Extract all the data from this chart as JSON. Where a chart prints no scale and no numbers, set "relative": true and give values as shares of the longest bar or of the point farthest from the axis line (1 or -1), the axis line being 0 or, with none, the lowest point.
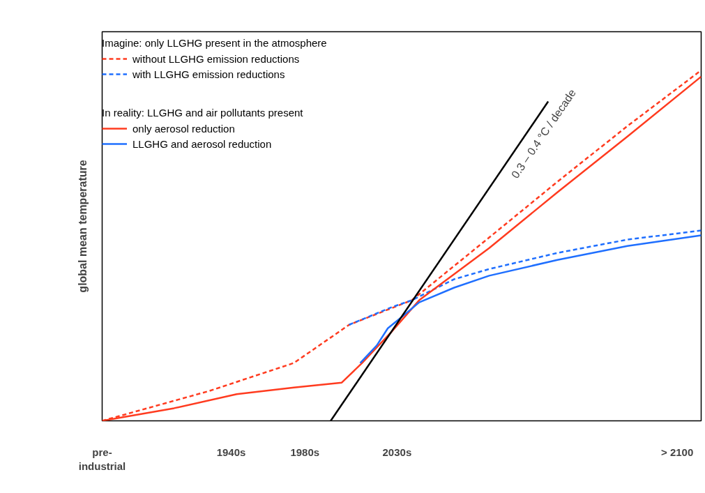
{
  "chart_data": {
    "type": "line",
    "relative": true,
    "ylabel": "global mean temperature",
    "xlim": [
      1870,
      2195
    ],
    "xticks": [
      {
        "value": 1870,
        "label": "pre-\nindustrial"
      },
      {
        "value": 1940,
        "label": "1940s"
      },
      {
        "value": 1980,
        "label": "1980s"
      },
      {
        "value": 2030,
        "label": "2030s"
      },
      {
        "value": 2182,
        "label": "> 2100"
      }
    ],
    "legend": "top left",
    "grid": false,
    "legend_title": [
      "Imagine: only LLGHG present in the atmosphere",
      "In reality: LLGHG and air pollutants present"
    ],
    "series": [
      {
        "name": "without LLGHG emission reductions",
        "color": "#ff3b1f",
        "line_style": "dashed",
        "x": [
          1870,
          1928,
          1974,
          2004,
          2038,
          2080,
          2117,
          2155,
          2195
        ],
        "values": [
          0,
          0.085,
          0.165,
          0.274,
          0.344,
          0.523,
          0.682,
          0.841,
          1.0
        ]
      },
      {
        "name": "with LLGHG emission reductions",
        "color": "#1f6fff",
        "line_style": "dashed",
        "x": [
          2004,
          2027,
          2038,
          2061,
          2080,
          2117,
          2155,
          2195
        ],
        "values": [
          0.274,
          0.324,
          0.344,
          0.404,
          0.433,
          0.479,
          0.517,
          0.543
        ]
      },
      {
        "name": "only aerosol reduction",
        "color": "#ff3b1f",
        "line_style": "solid",
        "x": [
          1870,
          1909,
          1943,
          1974,
          2000,
          2011,
          2027,
          2042,
          2080,
          2117,
          2155,
          2195
        ],
        "values": [
          0,
          0.036,
          0.076,
          0.095,
          0.109,
          0.165,
          0.254,
          0.344,
          0.493,
          0.652,
          0.811,
          0.982
        ]
      },
      {
        "name": "LLGHG and aerosol reduction",
        "color": "#1f6fff",
        "line_style": "solid",
        "x": [
          2010,
          2019,
          2025,
          2032,
          2042,
          2061,
          2080,
          2117,
          2155,
          2195
        ],
        "values": [
          0.165,
          0.215,
          0.264,
          0.294,
          0.338,
          0.38,
          0.414,
          0.459,
          0.499,
          0.529
        ]
      },
      {
        "color": "#000000",
        "line_style": "solid",
        "x": [
          1994,
          2112
        ],
        "values": [
          0,
          0.911
        ]
      }
    ],
    "annotations": [
      "0.3 – 0.4 °C / decade"
    ]
  }
}
